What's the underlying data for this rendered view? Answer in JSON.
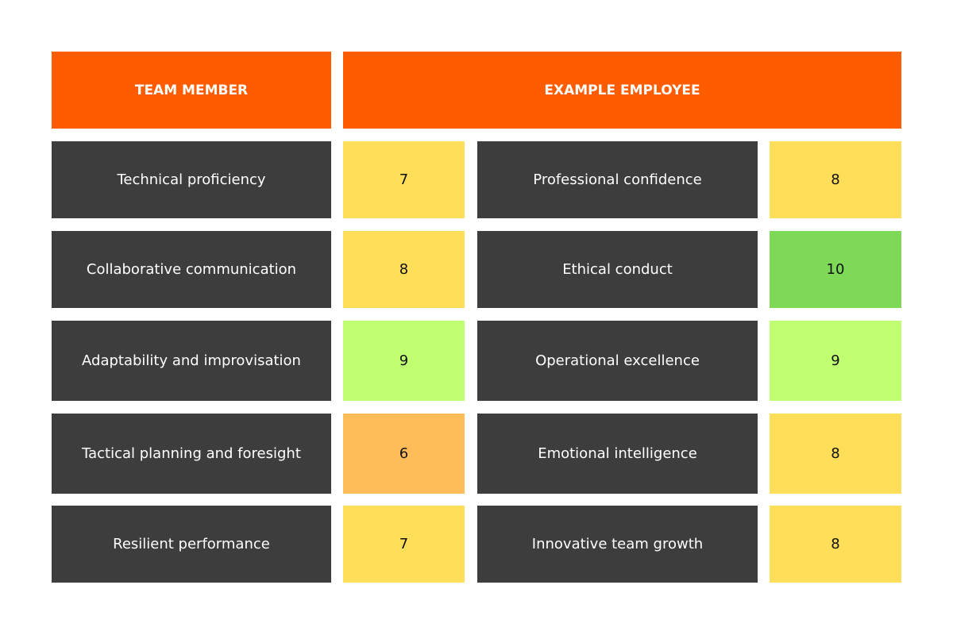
{
  "header": {
    "left": "TEAM MEMBER",
    "right": "EXAMPLE EMPLOYEE"
  },
  "rows": [
    {
      "left_label": "Technical proficiency",
      "left_score": 7,
      "left_color": "#ffde59",
      "right_label": "Professional confidence",
      "right_score": 8,
      "right_color": "#ffde59"
    },
    {
      "left_label": "Collaborative communication",
      "left_score": 8,
      "left_color": "#ffde59",
      "right_label": "Ethical conduct",
      "right_score": 10,
      "right_color": "#7ed957"
    },
    {
      "left_label": "Adaptability and improvisation",
      "left_score": 9,
      "left_color": "#c1ff72",
      "right_label": "Operational excellence",
      "right_score": 9,
      "right_color": "#c1ff72"
    },
    {
      "left_label": "Tactical planning and foresight",
      "left_score": 6,
      "left_color": "#ffbd59",
      "right_label": "Emotional intelligence",
      "right_score": 8,
      "right_color": "#ffde59"
    },
    {
      "left_label": "Resilient performance",
      "left_score": 7,
      "left_color": "#ffde59",
      "right_label": "Innovative team growth",
      "right_score": 8,
      "right_color": "#ffde59"
    }
  ]
}
